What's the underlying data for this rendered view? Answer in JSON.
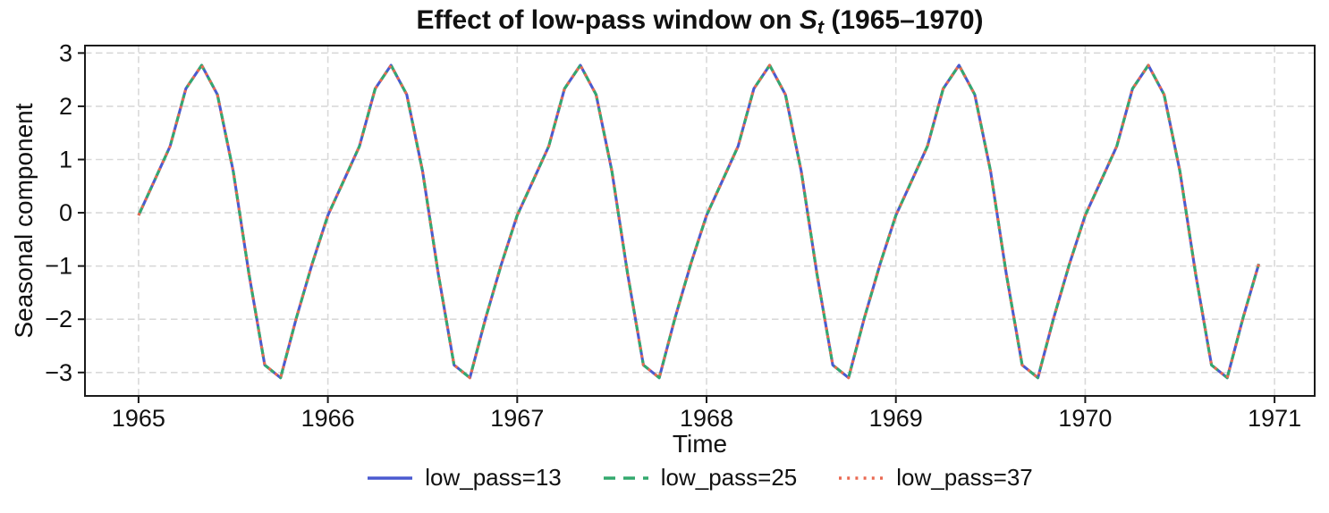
{
  "figure": {
    "title_prefix": "Effect of low-pass window on ",
    "title_math_var": "S",
    "title_math_sub": "t",
    "title_suffix": " (1965–1970)",
    "xlabel": "Time",
    "ylabel": "Seasonal component"
  },
  "chart_data": {
    "type": "line",
    "title": "Effect of low-pass window on S_t (1965–1970)",
    "xlabel": "Time",
    "ylabel": "Seasonal component",
    "x_start": "1965-01",
    "x_end": "1970-12",
    "x_step": "1 month",
    "n_points": 72,
    "xticks": [
      1965,
      1966,
      1967,
      1968,
      1969,
      1970,
      1971
    ],
    "yticks": [
      -3,
      -2,
      -1,
      0,
      1,
      2,
      3
    ],
    "xlim": [
      1964.717,
      1971.212
    ],
    "ylim": [
      -3.44,
      3.14
    ],
    "grid": {
      "visible": true,
      "style": "dashed",
      "color": "#d9d9d9"
    },
    "legend_position": "below-center",
    "series_overlap_note": "All three series are visually identical and overlap completely",
    "monthly_pattern_jan_to_dec": [
      -0.05,
      0.6,
      1.25,
      2.33,
      2.77,
      2.22,
      0.78,
      -1.15,
      -2.86,
      -3.1,
      -1.98,
      -0.96
    ],
    "values": [
      -0.05,
      0.6,
      1.25,
      2.33,
      2.77,
      2.22,
      0.78,
      -1.15,
      -2.86,
      -3.1,
      -1.98,
      -0.96,
      -0.05,
      0.6,
      1.25,
      2.33,
      2.77,
      2.22,
      0.78,
      -1.15,
      -2.86,
      -3.1,
      -1.98,
      -0.96,
      -0.05,
      0.6,
      1.25,
      2.33,
      2.77,
      2.22,
      0.78,
      -1.15,
      -2.86,
      -3.1,
      -1.98,
      -0.96,
      -0.05,
      0.6,
      1.25,
      2.33,
      2.77,
      2.22,
      0.78,
      -1.15,
      -2.86,
      -3.1,
      -1.98,
      -0.96,
      -0.05,
      0.6,
      1.25,
      2.33,
      2.77,
      2.22,
      0.78,
      -1.15,
      -2.86,
      -3.1,
      -1.98,
      -0.96,
      -0.05,
      0.6,
      1.25,
      2.33,
      2.77,
      2.22,
      0.78,
      -1.15,
      -2.86,
      -3.1,
      -1.98,
      -0.96
    ],
    "series": [
      {
        "name": "low_pass=13",
        "color": "#4a5ad0",
        "line_style": "solid"
      },
      {
        "name": "low_pass=25",
        "color": "#33a96e",
        "line_style": "dashed"
      },
      {
        "name": "low_pass=37",
        "color": "#ea6a52",
        "line_style": "dotted"
      }
    ]
  },
  "colors": {
    "background": "#ffffff",
    "frame": "#1a1a1a",
    "text": "#111111",
    "grid": "#d9d9d9",
    "series_blue": "#4a5ad0",
    "series_green": "#33a96e",
    "series_red": "#ea6a52"
  }
}
